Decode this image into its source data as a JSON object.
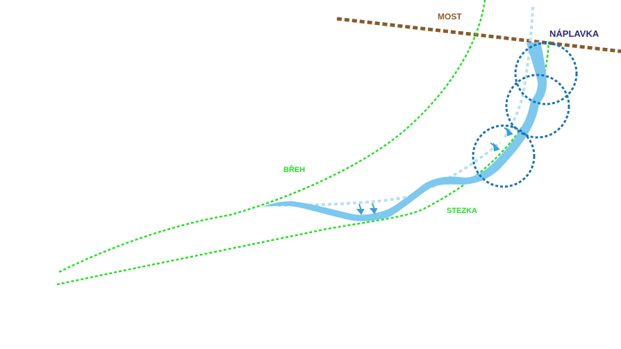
{
  "labels": {
    "bridge": "MOST",
    "embankment": "NÁPLAVKA",
    "bank": "BŘEH",
    "path": "STEZKA"
  },
  "colors": {
    "bridge": "#8a5a2b",
    "embankment": "#2a2a7a",
    "bank": "#22e022",
    "path": "#22e022",
    "stream": "#7cc8ee",
    "stream_faint": "#b9e0f3",
    "circles": "#1672b8",
    "arrows": "#3aa0dc"
  }
}
